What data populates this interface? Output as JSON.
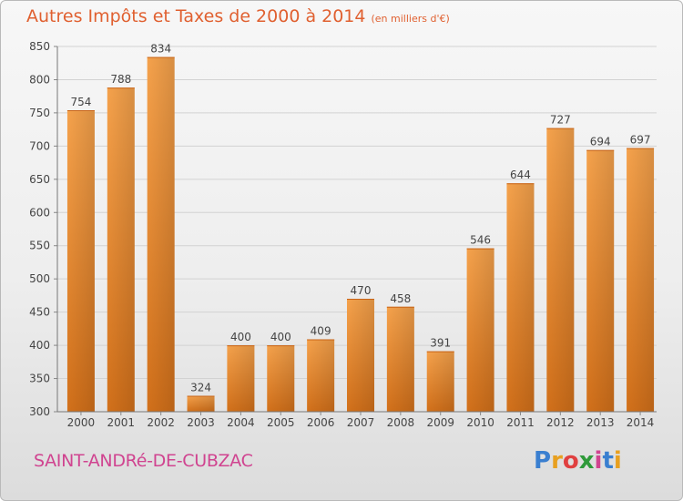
{
  "chart_data": {
    "type": "bar",
    "title": "Autres Impôts et Taxes de 2000 à 2014",
    "subtitle": "(en milliers d'€)",
    "xlabel": "",
    "ylabel": "",
    "categories": [
      "2000",
      "2001",
      "2002",
      "2003",
      "2004",
      "2005",
      "2006",
      "2007",
      "2008",
      "2009",
      "2010",
      "2011",
      "2012",
      "2013",
      "2014"
    ],
    "values": [
      754,
      788,
      834,
      324,
      400,
      400,
      409,
      470,
      458,
      391,
      546,
      644,
      727,
      694,
      697
    ],
    "ylim": [
      300,
      850
    ],
    "yticks": [
      300,
      350,
      400,
      450,
      500,
      550,
      600,
      650,
      700,
      750,
      800,
      850
    ],
    "grid": true,
    "bar_color": "#f0963c"
  },
  "footer": {
    "commune": "SAINT-ANDRé-DE-CUBZAC",
    "logo_letters": [
      "P",
      "r",
      "o",
      "x",
      "i",
      "t",
      "i"
    ],
    "logo_colors": [
      "#3a7fd0",
      "#e8a020",
      "#e04040",
      "#2f9a3a",
      "#d04490",
      "#3a7fd0",
      "#e8a020"
    ]
  }
}
